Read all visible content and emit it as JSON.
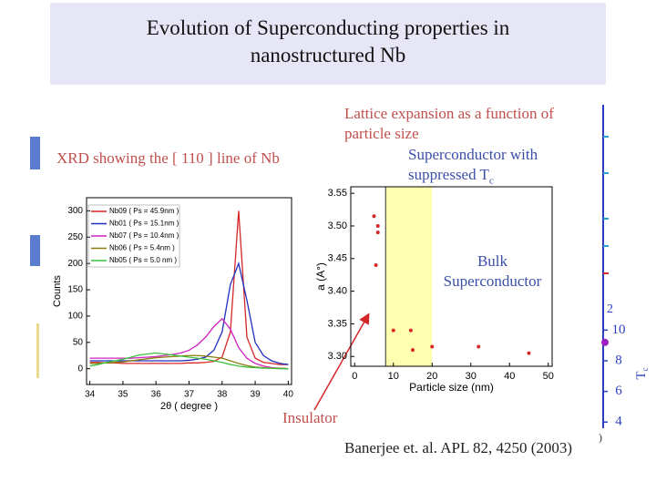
{
  "title": "Evolution of Superconducting properties in nanostructured Nb",
  "chart_data": [
    {
      "type": "line",
      "title": "XRD showing the [ 110 ] line of Nb",
      "x_label": "2θ ( degree )",
      "y_label": "Counts",
      "x": [
        34,
        34.25,
        34.5,
        34.75,
        35,
        35.25,
        35.5,
        35.75,
        36,
        36.25,
        36.5,
        36.75,
        37,
        37.25,
        37.5,
        37.75,
        38,
        38.25,
        38.5,
        38.75,
        39,
        39.25,
        39.5,
        39.75,
        40
      ],
      "series": [
        {
          "name": "Nb09 ( Ps = 45.9nm )",
          "color": "#d62728",
          "values": [
            12,
            12,
            11,
            11,
            10,
            10,
            10,
            10,
            10,
            10,
            10,
            10,
            11,
            11,
            12,
            14,
            22,
            70,
            300,
            60,
            20,
            12,
            10,
            8,
            8
          ]
        },
        {
          "name": "Nb01 ( Ps = 15.1nm )",
          "color": "#1f2fbf",
          "values": [
            15,
            15,
            15,
            15,
            15,
            15,
            15,
            15,
            15,
            15,
            15,
            15,
            16,
            18,
            22,
            35,
            70,
            160,
            200,
            130,
            50,
            25,
            15,
            10,
            8
          ]
        },
        {
          "name": "Nb07 ( Ps = 10.4nm )",
          "color": "#d020c0",
          "values": [
            20,
            20,
            20,
            20,
            20,
            20,
            21,
            22,
            23,
            25,
            27,
            30,
            35,
            45,
            60,
            80,
            95,
            75,
            40,
            20,
            10,
            5,
            2,
            1,
            0
          ]
        },
        {
          "name": "Nb06 ( Ps = 5.4nm )",
          "color": "#8a7a10",
          "values": [
            10,
            10,
            11,
            12,
            13,
            15,
            17,
            19,
            21,
            22,
            23,
            24,
            25,
            25,
            24,
            22,
            20,
            15,
            10,
            6,
            3,
            2,
            1,
            1,
            0
          ]
        },
        {
          "name": "Nb05 ( Ps = 5.0 nm )",
          "color": "#3cc03c",
          "values": [
            5,
            8,
            12,
            15,
            18,
            22,
            26,
            28,
            30,
            28,
            26,
            24,
            22,
            20,
            18,
            15,
            12,
            8,
            5,
            3,
            2,
            1,
            1,
            0,
            0
          ]
        }
      ],
      "xlim": [
        33.9,
        40.1
      ],
      "ylim": [
        -30,
        325
      ],
      "xticks": [
        34,
        35,
        36,
        37,
        38,
        39,
        40
      ],
      "yticks": [
        0,
        50,
        100,
        150,
        200,
        250,
        300
      ]
    },
    {
      "type": "scatter",
      "title": "Lattice expansion as a function of particle size",
      "x_label": "Particle size (nm)",
      "y_label": "a (A°)",
      "x": [
        5,
        6,
        6,
        5.5,
        10,
        14.5,
        15,
        20,
        32,
        45
      ],
      "values": [
        3.515,
        3.5,
        3.49,
        3.44,
        3.34,
        3.34,
        3.31,
        3.315,
        3.315,
        3.305
      ],
      "color": "#d62728",
      "xlim": [
        -1,
        51
      ],
      "ylim": [
        3.285,
        3.56
      ],
      "xticks": [
        0,
        10,
        20,
        30,
        40,
        50
      ],
      "yticks": [
        {
          "value": 3.3,
          "label": "3.30"
        },
        3.35,
        {
          "value": 3.4,
          "label": "3.40"
        },
        3.45,
        {
          "value": 3.5,
          "label": "3.50"
        },
        3.55
      ],
      "highlight_x": [
        8,
        20
      ],
      "annotations": [
        {
          "text": "Superconductor with suppressed T",
          "subscript": "c"
        },
        {
          "text": "Bulk Superconductor"
        },
        {
          "text": "Insulator"
        }
      ]
    }
  ],
  "partial_axis": {
    "ylim": [
      3.6,
      24.7
    ],
    "ticks": [
      4,
      6,
      8,
      10
    ],
    "label": "T",
    "label_subscript": "c",
    "points": [
      9.2
    ],
    "fragments": [
      "2",
      ")"
    ]
  },
  "citation": "Banerjee et. al. APL 82, 4250 (2003)"
}
